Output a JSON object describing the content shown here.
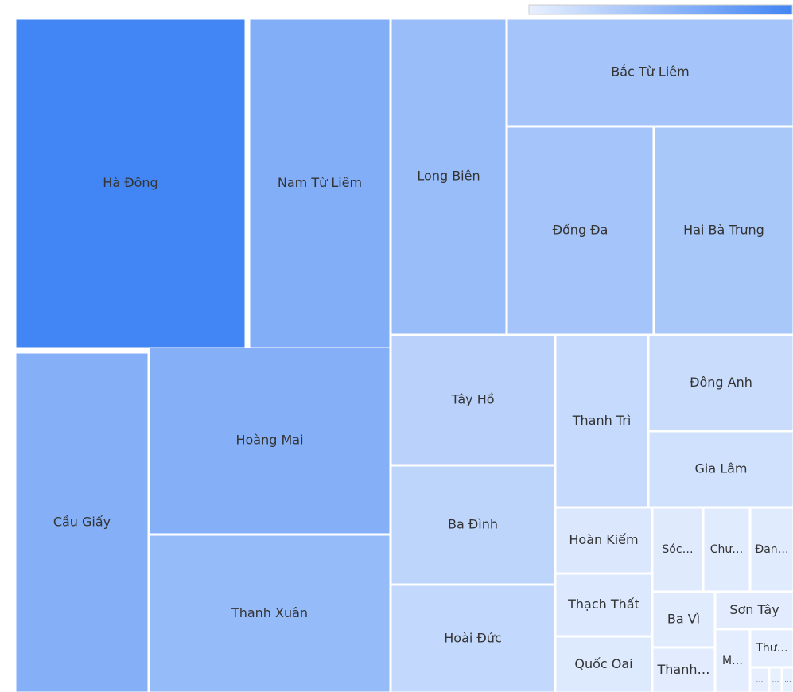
{
  "chart_data": {
    "type": "treemap",
    "categories": [
      "Hà Đông",
      "Nam Từ Liêm",
      "Long Biên",
      "Bắc Từ Liêm",
      "Đống Đa",
      "Hai Bà Trưng",
      "Cầu Giấy",
      "Hoàng Mai",
      "Thanh Xuân",
      "Tây Hồ",
      "Ba Đình",
      "Hoài Đức",
      "Thanh Trì",
      "Đông Anh",
      "Gia Lâm",
      "Hoàn Kiếm",
      "Thạch Thất",
      "Quốc Oai",
      "Sóc…",
      "Chư…",
      "Đan…",
      "Ba Vì",
      "Sơn Tây",
      "Thanh…",
      "M…",
      "Thư…",
      "…",
      "…",
      "…"
    ],
    "values": [
      119,
      73,
      57,
      48,
      48,
      45,
      71,
      71,
      59,
      33,
      30,
      27,
      25,
      22,
      17,
      10,
      9,
      8,
      6.4,
      5.9,
      5.5,
      5.2,
      4.4,
      4.2,
      3.3,
      2.4,
      0.7,
      0.4,
      0.4
    ],
    "color_min": "#e8f0fe",
    "color_max": "#4285f4"
  }
}
